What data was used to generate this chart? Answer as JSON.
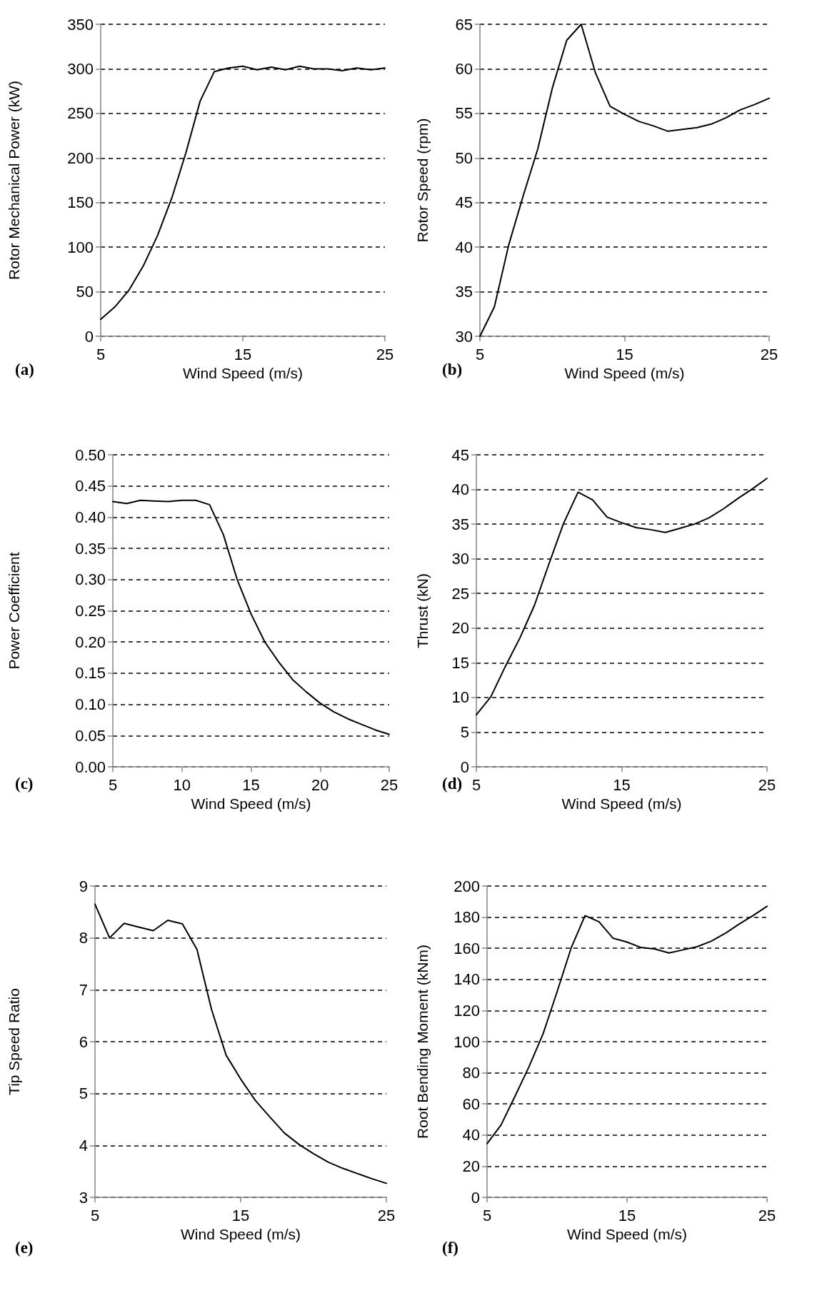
{
  "chart_data": [
    {
      "type": "line",
      "xlabel": "Wind Speed (m/s)",
      "ylabel": "Rotor Mechanical Power (kW)",
      "annotations": [
        "(a)"
      ],
      "x": [
        5,
        6,
        7,
        8,
        9,
        10,
        11,
        12,
        13,
        14,
        15,
        16,
        17,
        18,
        19,
        20,
        21,
        22,
        23,
        24,
        25
      ],
      "series": [
        {
          "color": "#000000",
          "values": [
            19,
            33,
            52,
            79,
            113,
            155,
            206,
            264,
            297,
            301,
            303,
            299,
            302,
            299,
            303,
            300,
            300,
            298,
            301,
            299,
            301
          ]
        }
      ],
      "xlim": [
        5,
        25
      ],
      "xticks": [
        5,
        15,
        25
      ],
      "ylim": [
        0,
        350
      ],
      "yticks": [
        0,
        50,
        100,
        150,
        200,
        250,
        300,
        350
      ],
      "grid": "y",
      "line_style": "solid",
      "marker": "none"
    },
    {
      "type": "line",
      "xlabel": "Wind Speed (m/s)",
      "ylabel": "Rotor Speed (rpm)",
      "annotations": [
        "(b)"
      ],
      "x": [
        5,
        6,
        7,
        8,
        9,
        10,
        11,
        12,
        13,
        14,
        15,
        16,
        17,
        18,
        19,
        20,
        21,
        22,
        23,
        24,
        25
      ],
      "series": [
        {
          "color": "#000000",
          "values": [
            30,
            33.3,
            40.3,
            45.8,
            51,
            57.8,
            63.2,
            65,
            59.5,
            55.8,
            54.9,
            54.1,
            53.6,
            53,
            53.2,
            53.4,
            53.8,
            54.5,
            55.4,
            56,
            56.7
          ]
        }
      ],
      "xlim": [
        5,
        25
      ],
      "xticks": [
        5,
        15,
        25
      ],
      "ylim": [
        30,
        65
      ],
      "yticks": [
        30,
        35,
        40,
        45,
        50,
        55,
        60,
        65
      ],
      "grid": "y",
      "line_style": "solid",
      "marker": "none"
    },
    {
      "type": "line",
      "xlabel": "Wind Speed (m/s)",
      "ylabel": "Power Coefficient",
      "annotations": [
        "(c)"
      ],
      "x": [
        5,
        6,
        7,
        8,
        9,
        10,
        11,
        12,
        13,
        14,
        15,
        16,
        17,
        18,
        19,
        20,
        21,
        22,
        23,
        24,
        25
      ],
      "series": [
        {
          "color": "#000000",
          "values": [
            0.425,
            0.422,
            0.427,
            0.426,
            0.425,
            0.427,
            0.427,
            0.42,
            0.372,
            0.3,
            0.245,
            0.2,
            0.168,
            0.14,
            0.12,
            0.102,
            0.088,
            0.077,
            0.068,
            0.059,
            0.052
          ]
        }
      ],
      "xlim": [
        5,
        25
      ],
      "xticks": [
        5,
        10,
        15,
        20,
        25
      ],
      "ylim": [
        0,
        0.5
      ],
      "yticks": [
        {
          "value": 0,
          "label": "0.00"
        },
        {
          "value": 0.05,
          "label": "0.05"
        },
        {
          "value": 0.1,
          "label": "0.10"
        },
        {
          "value": 0.15,
          "label": "0.15"
        },
        {
          "value": 0.2,
          "label": "0.20"
        },
        {
          "value": 0.25,
          "label": "0.25"
        },
        {
          "value": 0.3,
          "label": "0.30"
        },
        {
          "value": 0.35,
          "label": "0.35"
        },
        {
          "value": 0.4,
          "label": "0.40"
        },
        {
          "value": 0.45,
          "label": "0.45"
        },
        {
          "value": 0.5,
          "label": "0.50"
        }
      ],
      "grid": "y",
      "line_style": "solid",
      "marker": "none"
    },
    {
      "type": "line",
      "xlabel": "Wind Speed (m/s)",
      "ylabel": "Thrust (kN)",
      "annotations": [
        "(d)"
      ],
      "x": [
        5,
        6,
        7,
        8,
        9,
        10,
        11,
        12,
        13,
        14,
        15,
        16,
        17,
        18,
        19,
        20,
        21,
        22,
        23,
        24,
        25
      ],
      "series": [
        {
          "color": "#000000",
          "values": [
            7.5,
            10.1,
            14.5,
            18.6,
            23.3,
            29.3,
            35.1,
            39.6,
            38.5,
            36,
            35.2,
            34.5,
            34.2,
            33.8,
            34.4,
            35,
            35.9,
            37.2,
            38.7,
            40.1,
            41.6
          ]
        }
      ],
      "xlim": [
        5,
        25
      ],
      "xticks": [
        5,
        15,
        25
      ],
      "ylim": [
        0,
        45
      ],
      "yticks": [
        0,
        5,
        10,
        15,
        20,
        25,
        30,
        35,
        40,
        45
      ],
      "grid": "y",
      "line_style": "solid",
      "marker": "none"
    },
    {
      "type": "line",
      "xlabel": "Wind Speed (m/s)",
      "ylabel": "Tip Speed Ratio",
      "annotations": [
        "(e)"
      ],
      "x": [
        5,
        6,
        7,
        8,
        9,
        10,
        11,
        12,
        13,
        14,
        15,
        16,
        17,
        18,
        19,
        20,
        21,
        22,
        23,
        24,
        25
      ],
      "series": [
        {
          "color": "#000000",
          "values": [
            8.65,
            8,
            8.28,
            8.21,
            8.14,
            8.34,
            8.27,
            7.78,
            6.62,
            5.74,
            5.28,
            4.87,
            4.55,
            4.24,
            4.02,
            3.84,
            3.68,
            3.56,
            3.46,
            3.36,
            3.27
          ]
        }
      ],
      "xlim": [
        5,
        25
      ],
      "xticks": [
        5,
        15,
        25
      ],
      "ylim": [
        3,
        9
      ],
      "yticks": [
        3,
        4,
        5,
        6,
        7,
        8,
        9
      ],
      "grid": "y",
      "line_style": "solid",
      "marker": "none"
    },
    {
      "type": "line",
      "xlabel": "Wind Speed (m/s)",
      "ylabel": "Root Bending Moment (kNm)",
      "annotations": [
        "(f)"
      ],
      "x": [
        5,
        6,
        7,
        8,
        9,
        10,
        11,
        12,
        13,
        14,
        15,
        16,
        17,
        18,
        19,
        20,
        21,
        22,
        23,
        24,
        25
      ],
      "series": [
        {
          "color": "#000000",
          "values": [
            34.5,
            46.5,
            65,
            84,
            105,
            132,
            160,
            181,
            177,
            166.5,
            164,
            160.5,
            159.5,
            157,
            159,
            161,
            164.5,
            169.5,
            175.5,
            181,
            187
          ]
        }
      ],
      "xlim": [
        5,
        25
      ],
      "xticks": [
        5,
        15,
        25
      ],
      "ylim": [
        0,
        200
      ],
      "yticks": [
        0,
        20,
        40,
        60,
        80,
        100,
        120,
        140,
        160,
        180,
        200
      ],
      "grid": "y",
      "line_style": "solid",
      "marker": "none"
    }
  ]
}
